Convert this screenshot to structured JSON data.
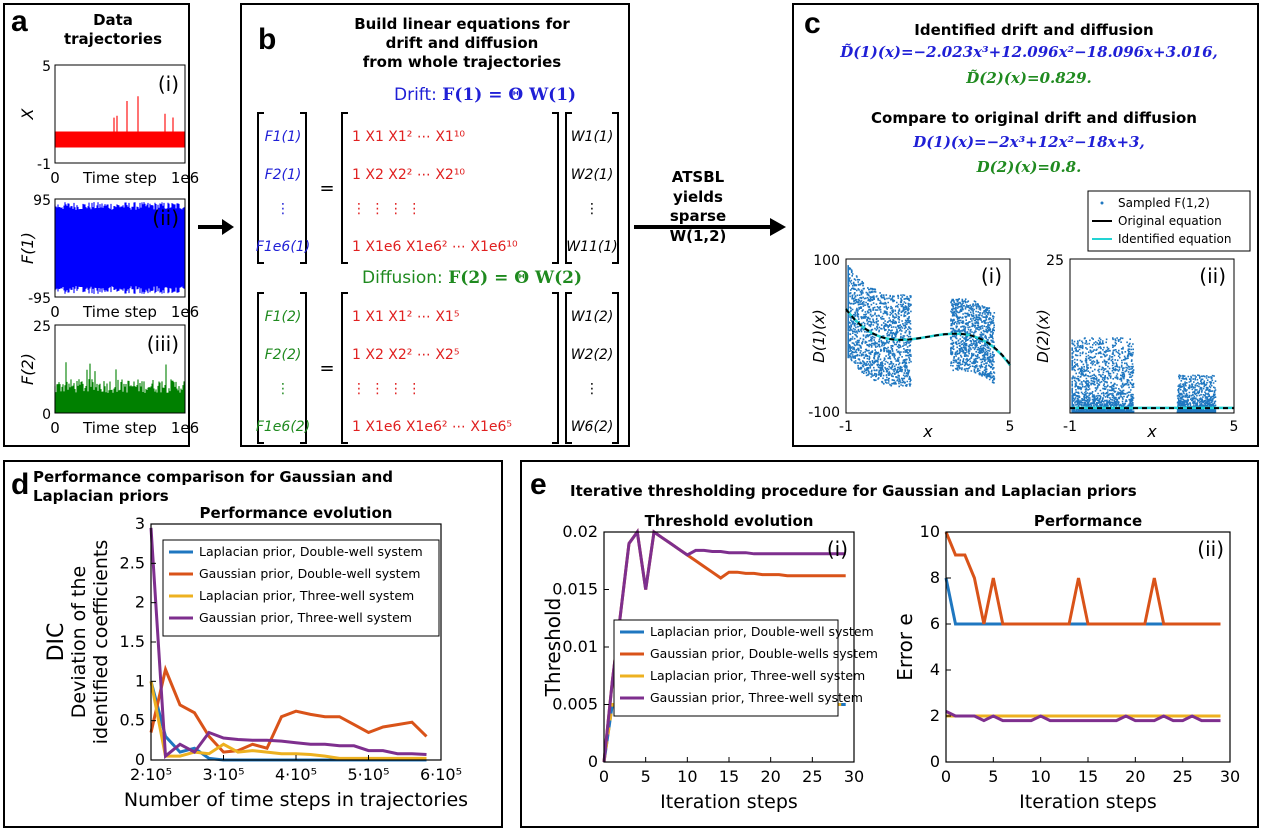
{
  "panels": {
    "a": {
      "label": "a",
      "title": "Data trajectories",
      "plots": [
        {
          "ylabel": "X",
          "ymax": "5",
          "ymin": "-1",
          "tag": "(i)",
          "color": "#ff0000"
        },
        {
          "ylabel": "F(1)",
          "ymax": "95",
          "ymin": "-95",
          "tag": "(ii)",
          "color": "#0000ff"
        },
        {
          "ylabel": "F(2)",
          "ymax": "25",
          "ymin": "0",
          "tag": "(iii)",
          "color": "#008000"
        }
      ],
      "xlabel": "Time step",
      "x0": "0",
      "xend": "1e6"
    },
    "b": {
      "label": "b",
      "title_line1": "Build linear equations for",
      "title_line2": "drift and diffusion",
      "title_line3": "from whole trajectories",
      "drift_label": "Drift:",
      "drift_eq": "F(1) = Θ W(1)",
      "diffusion_label": "Diffusion:",
      "diffusion_eq": "F(2) = Θ W(2)",
      "drift_lhs": [
        "F1(1)",
        "F2(1)",
        "⋮",
        "F1e6(1)"
      ],
      "drift_rows": [
        "1  X1     X1²  ⋯ X1¹⁰",
        "1  X2     X2²  ⋯ X2¹⁰",
        "⋮   ⋮       ⋮          ⋮",
        "1 X1e6  X1e6² ⋯ X1e6¹⁰"
      ],
      "drift_rhs": [
        "W1(1)",
        "W2(1)",
        "⋮",
        "W11(1)"
      ],
      "diff_lhs": [
        "F1(2)",
        "F2(2)",
        "⋮",
        "F1e6(2)"
      ],
      "diff_rows": [
        "1  X1     X1²  ⋯ X1⁵",
        "1  X2     X2²  ⋯ X2⁵",
        "⋮   ⋮       ⋮          ⋮",
        "1 X1e6  X1e6² ⋯ X1e6⁵"
      ],
      "diff_rhs": [
        "W1(2)",
        "W2(2)",
        "⋮",
        "W6(2)"
      ]
    },
    "arrow": {
      "line1": "ATSBL yields",
      "line2": "sparse W(1,2)"
    },
    "c": {
      "label": "c",
      "title1": "Identified drift and diffusion",
      "eq1": "D̃(1)(x)=−2.023x³+12.096x²−18.096x+3.016,",
      "eq2": "D̃(2)(x)=0.829.",
      "title2": "Compare to original drift and diffusion",
      "eq3": "D(1)(x)=−2x³+12x²−18x+3,",
      "eq4": "D(2)(x)=0.8.",
      "legend": [
        "Sampled F(1,2)",
        "Original equation",
        "Identified equation"
      ],
      "plot_i": {
        "tag": "(i)",
        "ylabel": "D(1)(x)",
        "xlabel": "x",
        "ymax": "100",
        "ymin": "-100",
        "xmin": "-1",
        "xmax": "5"
      },
      "plot_ii": {
        "tag": "(ii)",
        "ylabel": "D(2)(x)",
        "xlabel": "x",
        "ymax": "25",
        "ymin": "",
        "xmin": "-1",
        "xmax": "5"
      }
    },
    "d": {
      "label": "d",
      "title_line1": "Performance comparison for Gaussian and",
      "title_line2": "Laplacian priors"
    },
    "e": {
      "label": "e",
      "title": "Iterative thresholding procedure for Gaussian and Laplacian priors"
    }
  },
  "chart_data": [
    {
      "type": "line",
      "title": "Performance evolution",
      "xlabel": "Number of time steps in trajectories",
      "ylabel_line1": "DIC",
      "ylabel_line2": "Deviation of the",
      "ylabel_line3": "identified coefficients",
      "xlim": [
        200000,
        600000
      ],
      "ylim": [
        0,
        3
      ],
      "xticks": [
        "2·10⁵",
        "3·10⁵",
        "4·10⁵",
        "5·10⁵",
        "6·10⁵"
      ],
      "xtick_values": [
        200000,
        300000,
        400000,
        500000,
        600000
      ],
      "yticks": [
        "0",
        "0.5",
        "1",
        "1.5",
        "2",
        "2.5",
        "3"
      ],
      "ytick_values": [
        0,
        0.5,
        1,
        1.5,
        2,
        2.5,
        3
      ],
      "legend_position": "top-left",
      "x": [
        200000,
        220000,
        240000,
        260000,
        280000,
        300000,
        320000,
        340000,
        360000,
        380000,
        400000,
        420000,
        440000,
        460000,
        480000,
        500000,
        520000,
        540000,
        560000,
        580000
      ],
      "series": [
        {
          "name": "Laplacian prior, Double-well system",
          "color": "#1f77c0",
          "values": [
            1.0,
            0.3,
            0.1,
            0.15,
            0.02,
            0.0,
            0.0,
            0.0,
            0.0,
            0.0,
            0.0,
            0.0,
            0.0,
            0.0,
            0.0,
            0.0,
            0.0,
            0.0,
            0.0,
            0.0
          ]
        },
        {
          "name": "Gaussian prior, Double-well system",
          "color": "#d95319",
          "values": [
            0.35,
            1.15,
            0.7,
            0.6,
            0.3,
            0.1,
            0.12,
            0.2,
            0.15,
            0.55,
            0.62,
            0.58,
            0.55,
            0.55,
            0.45,
            0.35,
            0.42,
            0.45,
            0.48,
            0.3
          ]
        },
        {
          "name": "Laplacian prior, Three-well system",
          "color": "#edb120",
          "values": [
            1.0,
            0.05,
            0.05,
            0.1,
            0.08,
            0.2,
            0.1,
            0.12,
            0.1,
            0.08,
            0.08,
            0.07,
            0.05,
            0.02,
            0.02,
            0.02,
            0.02,
            0.02,
            0.02,
            0.02
          ]
        },
        {
          "name": "Gaussian prior, Three-well system",
          "color": "#7e2f8e",
          "values": [
            2.95,
            0.05,
            0.2,
            0.1,
            0.35,
            0.28,
            0.26,
            0.25,
            0.25,
            0.24,
            0.22,
            0.2,
            0.2,
            0.18,
            0.18,
            0.12,
            0.12,
            0.08,
            0.08,
            0.07
          ]
        }
      ]
    },
    {
      "type": "line",
      "title": "Threshold evolution",
      "tag": "(i)",
      "xlabel": "Iteration steps",
      "ylabel": "Threshold",
      "xlim": [
        0,
        30
      ],
      "ylim": [
        0,
        0.02
      ],
      "xticks": [
        "0",
        "5",
        "10",
        "15",
        "20",
        "25",
        "30"
      ],
      "xtick_values": [
        0,
        5,
        10,
        15,
        20,
        25,
        30
      ],
      "yticks": [
        "0",
        "0.005",
        "0.01",
        "0.015",
        "0.02"
      ],
      "ytick_values": [
        0,
        0.005,
        0.01,
        0.015,
        0.02
      ],
      "legend_position": "center-left",
      "x": [
        0,
        1,
        2,
        3,
        4,
        5,
        6,
        7,
        8,
        9,
        10,
        11,
        12,
        13,
        14,
        15,
        16,
        17,
        18,
        19,
        20,
        21,
        22,
        23,
        24,
        25,
        26,
        27,
        28,
        29
      ],
      "series": [
        {
          "name": "Laplacian prior, Double-well system",
          "color": "#1f77c0",
          "dashed": false,
          "values": [
            0,
            0.005,
            0.005,
            0.005,
            0.005,
            0.005,
            0.005,
            0.005,
            0.005,
            0.005,
            0.005,
            0.005,
            0.005,
            0.005,
            0.005,
            0.005,
            0.005,
            0.005,
            0.005,
            0.005,
            0.005,
            0.005,
            0.005,
            0.005,
            0.005,
            0.005,
            0.005,
            0.005,
            0.005,
            0.005
          ]
        },
        {
          "name": "Gaussian prior, Double-wells system",
          "color": "#d95319",
          "dashed": false,
          "values": [
            0,
            0.007,
            0.013,
            0.019,
            0.02,
            0.015,
            0.02,
            0.0195,
            0.019,
            0.0185,
            0.018,
            0.0175,
            0.017,
            0.0165,
            0.016,
            0.0165,
            0.0165,
            0.0164,
            0.0164,
            0.0163,
            0.0163,
            0.0163,
            0.0162,
            0.0162,
            0.0162,
            0.0162,
            0.0162,
            0.0162,
            0.0162,
            0.0162
          ]
        },
        {
          "name": "Laplacian prior, Three-well system",
          "color": "#edb120",
          "dashed": true,
          "values": [
            0,
            0.005,
            0.005,
            0.005,
            0.005,
            0.005,
            0.005,
            0.005,
            0.005,
            0.005,
            0.005,
            0.005,
            0.005,
            0.005,
            0.005,
            0.005,
            0.005,
            0.005,
            0.005,
            0.005,
            0.005,
            0.005,
            0.005,
            0.005,
            0.005,
            0.005,
            0.005,
            0.005,
            0.005,
            0.005
          ]
        },
        {
          "name": "Gaussian prior, Three-well system",
          "color": "#7e2f8e",
          "dashed": false,
          "values": [
            0,
            0.007,
            0.013,
            0.019,
            0.02,
            0.015,
            0.02,
            0.0195,
            0.019,
            0.0185,
            0.018,
            0.0184,
            0.0184,
            0.0183,
            0.0183,
            0.0182,
            0.0182,
            0.0182,
            0.0181,
            0.0181,
            0.0181,
            0.0181,
            0.0181,
            0.0181,
            0.0181,
            0.0181,
            0.0181,
            0.0181,
            0.0181,
            0.0181
          ]
        }
      ]
    },
    {
      "type": "line",
      "title": "Performance",
      "tag": "(ii)",
      "xlabel": "Iteration steps",
      "ylabel": "Error e",
      "xlim": [
        0,
        30
      ],
      "ylim": [
        0,
        10
      ],
      "xticks": [
        "0",
        "5",
        "10",
        "15",
        "20",
        "25",
        "30"
      ],
      "xtick_values": [
        0,
        5,
        10,
        15,
        20,
        25,
        30
      ],
      "yticks": [
        "0",
        "2",
        "4",
        "6",
        "8",
        "10"
      ],
      "ytick_values": [
        0,
        2,
        4,
        6,
        8,
        10
      ],
      "x": [
        0,
        1,
        2,
        3,
        4,
        5,
        6,
        7,
        8,
        9,
        10,
        11,
        12,
        13,
        14,
        15,
        16,
        17,
        18,
        19,
        20,
        21,
        22,
        23,
        24,
        25,
        26,
        27,
        28,
        29
      ],
      "series": [
        {
          "name": "Laplacian prior, Double-well system",
          "color": "#1f77c0",
          "values": [
            8,
            6,
            6,
            6,
            6,
            6,
            6,
            6,
            6,
            6,
            6,
            6,
            6,
            6,
            6,
            6,
            6,
            6,
            6,
            6,
            6,
            6,
            6,
            6,
            6,
            6,
            6,
            6,
            6,
            6
          ]
        },
        {
          "name": "Gaussian prior, Double-wells system",
          "color": "#d95319",
          "values": [
            10,
            9,
            9,
            8,
            6,
            8,
            6,
            6,
            6,
            6,
            6,
            6,
            6,
            6,
            8,
            6,
            6,
            6,
            6,
            6,
            6,
            6,
            8,
            6,
            6,
            6,
            6,
            6,
            6,
            6
          ]
        },
        {
          "name": "Laplacian prior, Three-well system",
          "color": "#edb120",
          "values": [
            2,
            2,
            2,
            2,
            2,
            2,
            2,
            2,
            2,
            2,
            2,
            2,
            2,
            2,
            2,
            2,
            2,
            2,
            2,
            2,
            2,
            2,
            2,
            2,
            2,
            2,
            2,
            2,
            2,
            2
          ]
        },
        {
          "name": "Gaussian prior, Three-well system",
          "color": "#7e2f8e",
          "values": [
            2.2,
            2,
            2,
            2,
            1.8,
            2,
            1.8,
            1.8,
            1.8,
            1.8,
            2,
            1.8,
            1.8,
            1.8,
            1.8,
            1.8,
            1.8,
            1.8,
            1.8,
            2,
            1.8,
            1.8,
            1.8,
            2,
            1.8,
            1.8,
            2,
            1.8,
            1.8,
            1.8
          ]
        }
      ]
    }
  ]
}
